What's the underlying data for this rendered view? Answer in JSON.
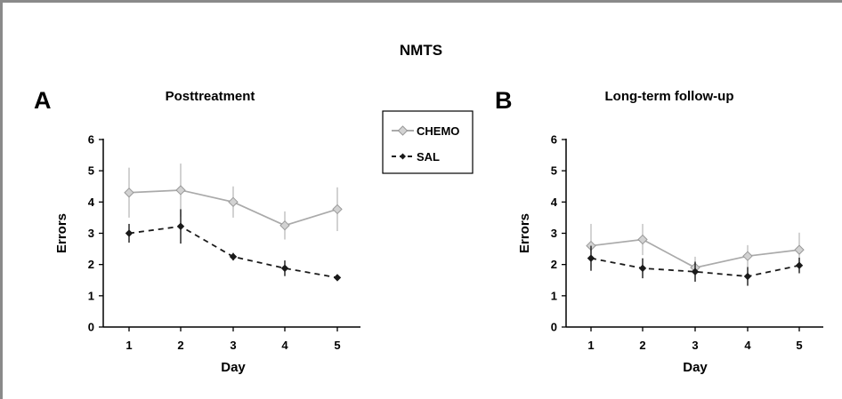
{
  "figure_title": "NMTS",
  "legend": {
    "entries": [
      {
        "label": "CHEMO",
        "color": "#aaaaaa",
        "marker": "diamond-open",
        "dash": "solid"
      },
      {
        "label": "SAL",
        "color": "#1a1a1a",
        "marker": "diamond-filled",
        "dash": "dashed"
      }
    ]
  },
  "chart_data": [
    {
      "type": "line",
      "panel_letter": "A",
      "title": "Posttreatment",
      "xlabel": "Day",
      "ylabel": "Errors",
      "x": [
        1,
        2,
        3,
        4,
        5
      ],
      "xlim": [
        0.5,
        5.5
      ],
      "ylim": [
        0,
        6
      ],
      "yticks": [
        0,
        1,
        2,
        3,
        4,
        5,
        6
      ],
      "grid": false,
      "series": [
        {
          "name": "CHEMO",
          "color": "#aaaaaa",
          "values": [
            4.3,
            4.38,
            4.0,
            3.25,
            3.77
          ],
          "error": [
            0.8,
            0.85,
            0.5,
            0.45,
            0.7
          ]
        },
        {
          "name": "SAL",
          "color": "#1a1a1a",
          "values": [
            3.0,
            3.22,
            2.25,
            1.88,
            1.58
          ],
          "error": [
            0.3,
            0.55,
            0.12,
            0.25,
            0.05
          ]
        }
      ]
    },
    {
      "type": "line",
      "panel_letter": "B",
      "title": "Long-term follow-up",
      "xlabel": "Day",
      "ylabel": "Errors",
      "x": [
        1,
        2,
        3,
        4,
        5
      ],
      "xlim": [
        0.5,
        5.5
      ],
      "ylim": [
        0,
        6
      ],
      "yticks": [
        0,
        1,
        2,
        3,
        4,
        5,
        6
      ],
      "grid": false,
      "series": [
        {
          "name": "CHEMO",
          "color": "#aaaaaa",
          "values": [
            2.6,
            2.8,
            1.9,
            2.27,
            2.47
          ],
          "error": [
            0.7,
            0.5,
            0.35,
            0.35,
            0.55
          ]
        },
        {
          "name": "SAL",
          "color": "#1a1a1a",
          "values": [
            2.2,
            1.88,
            1.77,
            1.62,
            1.97
          ],
          "error": [
            0.4,
            0.32,
            0.32,
            0.3,
            0.25
          ]
        }
      ]
    }
  ]
}
